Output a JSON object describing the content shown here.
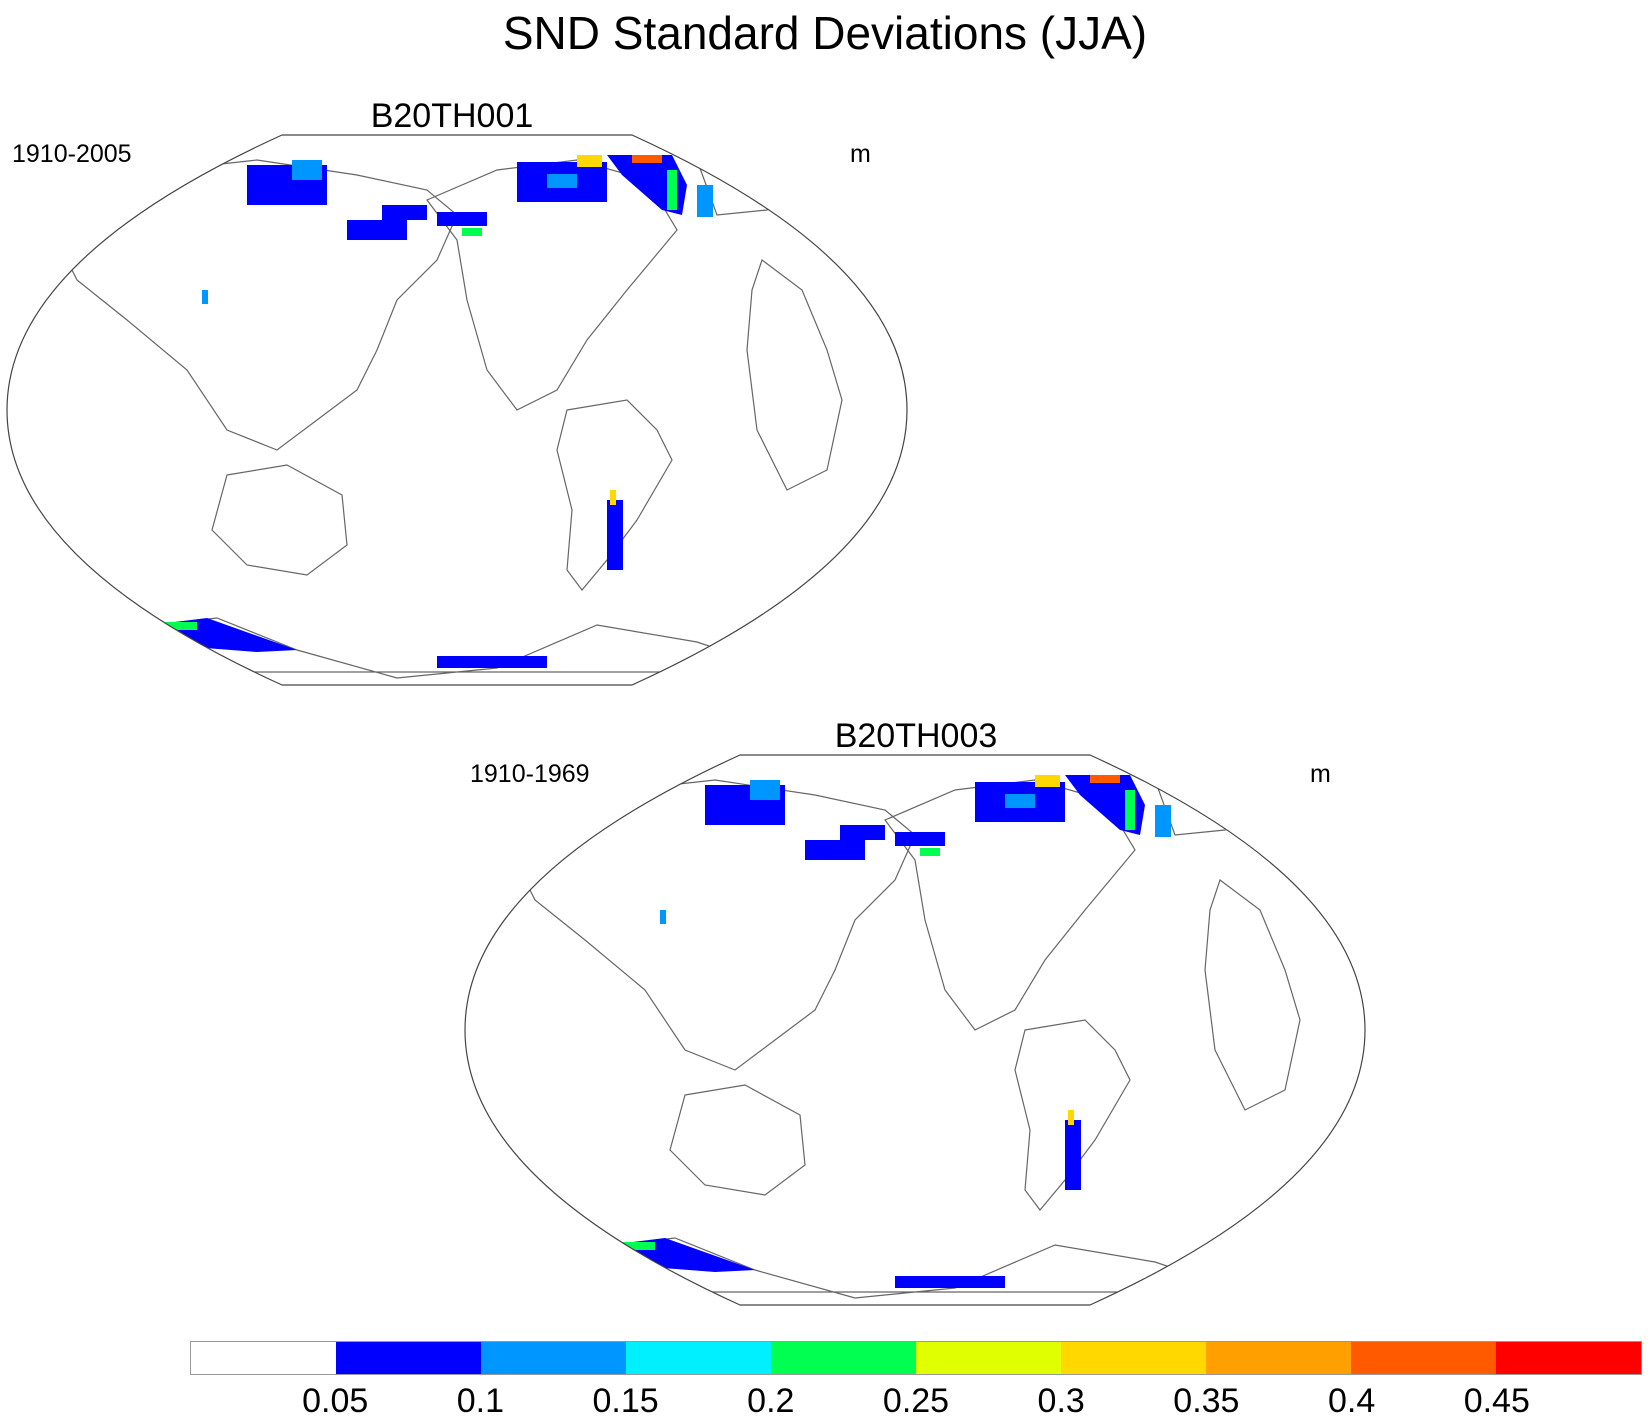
{
  "title": "SND Standard Deviations (JJA)",
  "panels": [
    {
      "name": "B20TH001",
      "period": "1910-2005",
      "units": "m"
    },
    {
      "name": "B20TH003",
      "period": "1910-1969",
      "units": "m"
    }
  ],
  "colorbar": {
    "colors": [
      "#ffffff",
      "#0000ff",
      "#0096ff",
      "#00f0ff",
      "#00ff50",
      "#e0ff00",
      "#ffd800",
      "#ffa000",
      "#ff5a00",
      "#ff0000"
    ],
    "labels": [
      "0.05",
      "0.1",
      "0.15",
      "0.2",
      "0.25",
      "0.3",
      "0.35",
      "0.4",
      "0.45"
    ]
  }
}
